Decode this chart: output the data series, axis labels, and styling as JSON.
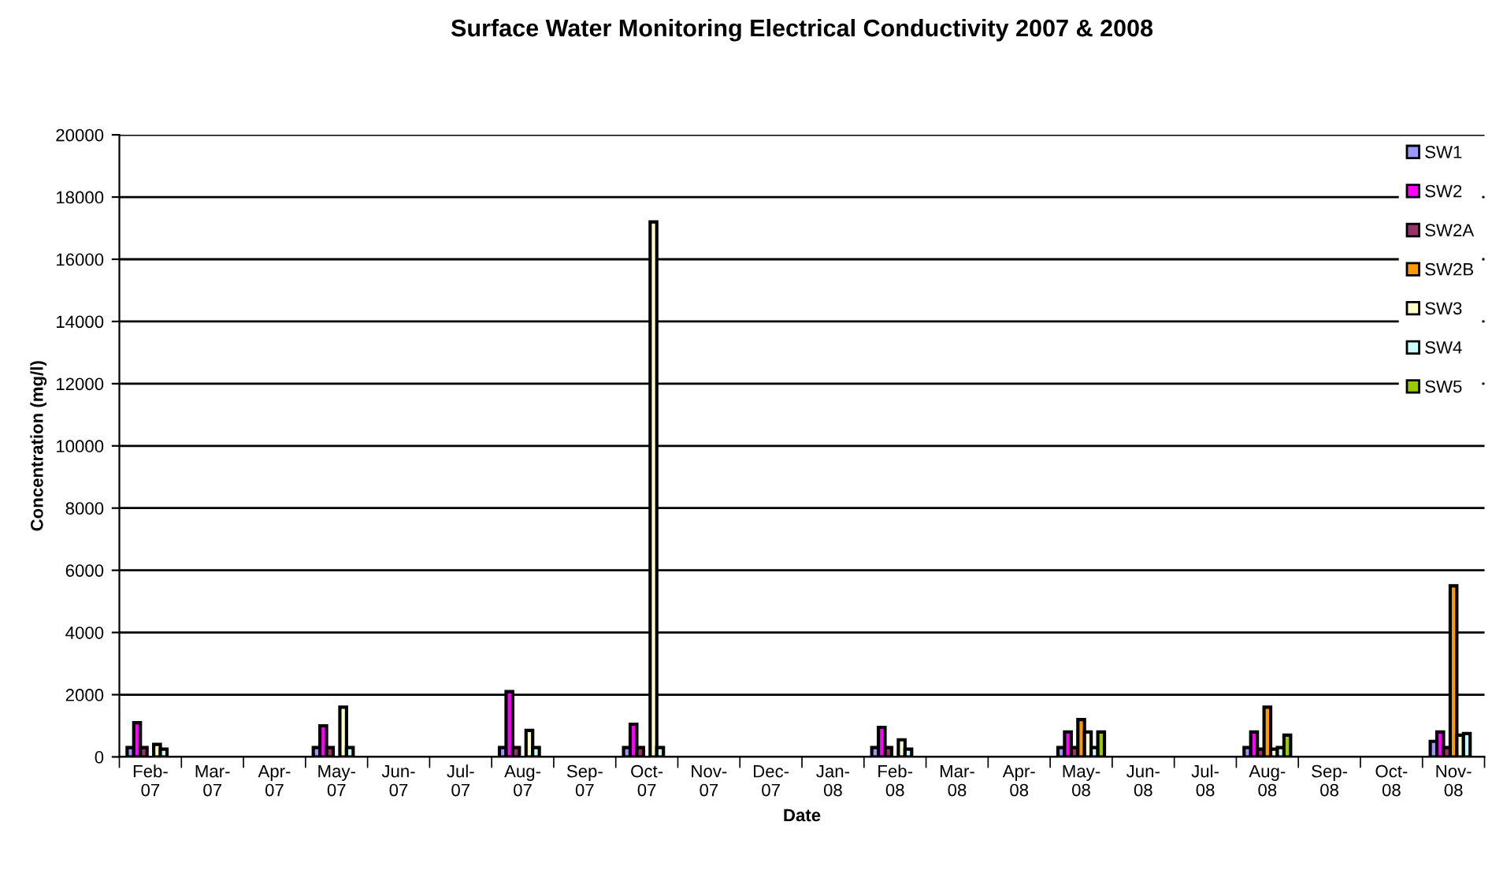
{
  "chart_data": {
    "type": "bar",
    "title": "Surface Water Monitoring Electrical Conductivity 2007 & 2008",
    "xlabel": "Date",
    "ylabel": "Concentration (mg/l)",
    "categories": [
      "Feb-07",
      "Mar-07",
      "Apr-07",
      "May-07",
      "Jun-07",
      "Jul-07",
      "Aug-07",
      "Sep-07",
      "Oct-07",
      "Nov-07",
      "Dec-07",
      "Jan-08",
      "Feb-08",
      "Mar-08",
      "Apr-08",
      "May-08",
      "Jun-08",
      "Jul-08",
      "Aug-08",
      "Sep-08",
      "Oct-08",
      "Nov-08"
    ],
    "series": [
      {
        "name": "SW1",
        "color": "#9999ff",
        "values": [
          300,
          null,
          null,
          300,
          null,
          null,
          300,
          null,
          300,
          null,
          null,
          null,
          300,
          null,
          null,
          300,
          null,
          null,
          300,
          null,
          null,
          500
        ]
      },
      {
        "name": "SW2",
        "color": "#ff00ff",
        "values": [
          1100,
          null,
          null,
          1000,
          null,
          null,
          2100,
          null,
          1050,
          null,
          null,
          null,
          950,
          null,
          null,
          800,
          null,
          null,
          800,
          null,
          null,
          800
        ]
      },
      {
        "name": "SW2A",
        "color": "#993366",
        "values": [
          300,
          null,
          null,
          300,
          null,
          null,
          300,
          null,
          300,
          null,
          null,
          null,
          300,
          null,
          null,
          300,
          null,
          null,
          250,
          null,
          null,
          300
        ]
      },
      {
        "name": "SW2B",
        "color": "#ff9900",
        "values": [
          null,
          null,
          null,
          null,
          null,
          null,
          null,
          null,
          null,
          null,
          null,
          null,
          null,
          null,
          null,
          1200,
          null,
          null,
          1600,
          null,
          null,
          5500
        ]
      },
      {
        "name": "SW3",
        "color": "#ffffcc",
        "values": [
          400,
          null,
          null,
          1600,
          null,
          null,
          850,
          null,
          17200,
          null,
          null,
          null,
          550,
          null,
          null,
          800,
          null,
          null,
          250,
          null,
          null,
          700
        ]
      },
      {
        "name": "SW4",
        "color": "#ccffff",
        "values": [
          250,
          null,
          null,
          300,
          null,
          null,
          300,
          null,
          300,
          null,
          null,
          null,
          250,
          null,
          null,
          300,
          null,
          null,
          300,
          null,
          null,
          750
        ]
      },
      {
        "name": "SW5",
        "color": "#99cc00",
        "values": [
          null,
          null,
          null,
          null,
          null,
          null,
          null,
          null,
          null,
          null,
          null,
          null,
          null,
          null,
          null,
          800,
          null,
          null,
          700,
          null,
          null,
          null
        ]
      }
    ],
    "ylim": [
      0,
      20000
    ],
    "yticks": [
      0,
      2000,
      4000,
      6000,
      8000,
      10000,
      12000,
      14000,
      16000,
      18000,
      20000
    ],
    "grid": "y",
    "legend": "top right"
  }
}
